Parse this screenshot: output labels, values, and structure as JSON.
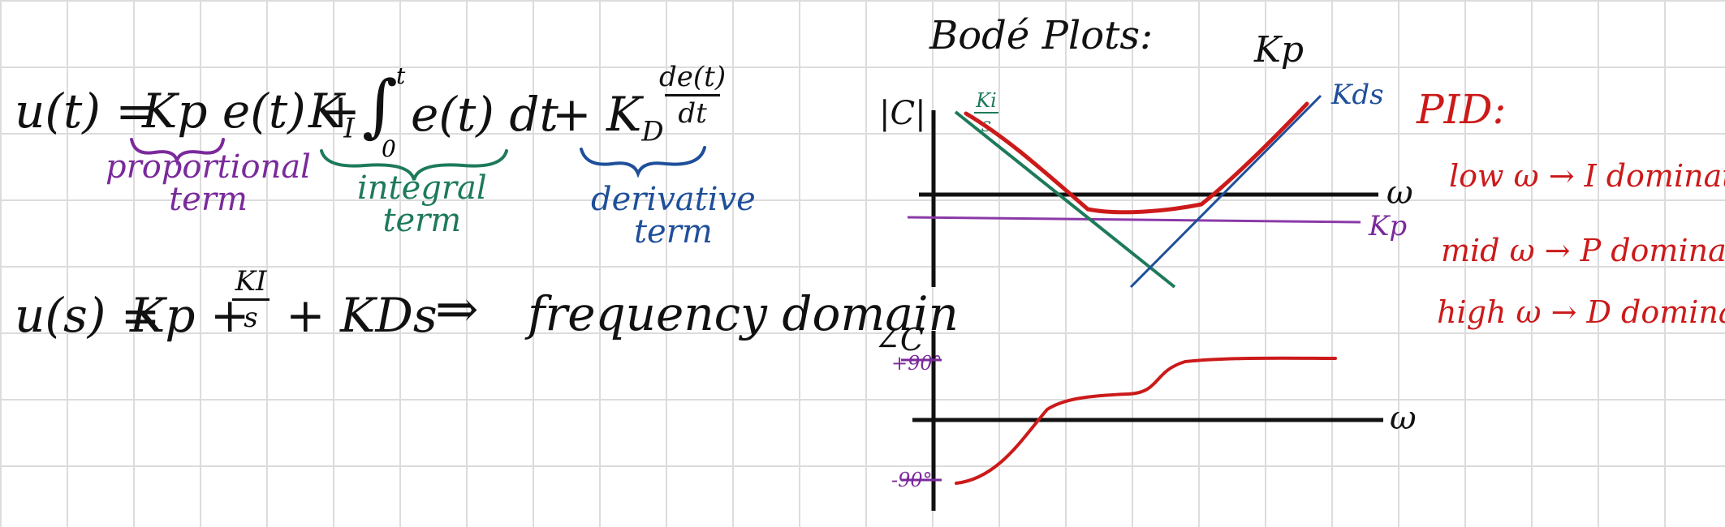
{
  "colors": {
    "ink": "#111111",
    "proportional": "#7b2a9b",
    "integral": "#1d7a5a",
    "derivative": "#1f4f9a",
    "pid": "#cc1a1a",
    "grid": "#dcdcdc"
  },
  "time_domain": {
    "lhs": "u(t) =",
    "kp_term": "Kp e(t)",
    "plus1": "+",
    "ki": "K",
    "ki_sub": "I",
    "integral_sign": "∫",
    "integral_upper": "t",
    "integral_lower": "0",
    "integrand": "e(t) dt",
    "plus2": "+",
    "kd": "K",
    "kd_sub": "D",
    "deriv_num": "de(t)",
    "deriv_den": "dt"
  },
  "term_labels": {
    "proportional": [
      "proportional",
      "term"
    ],
    "integral": [
      "integral",
      "term"
    ],
    "derivative": [
      "derivative",
      "term"
    ]
  },
  "freq_domain": {
    "lhs": "u(s) =",
    "kp": "Kp",
    "plus1": "+",
    "ki_num": "KI",
    "ki_den": "s",
    "plus2": "+",
    "kd_s": "KDs",
    "arrow": "⇒",
    "note": "frequency domain"
  },
  "bode": {
    "title": "Bodé Plots:",
    "mag_label": "|C|",
    "mag_axis": "ω",
    "phase_label": "∠C",
    "phase_axis": "ω",
    "phase_top": "+90°",
    "phase_bottom": "-90°",
    "line_kp_top": "Kp",
    "line_kds": "Kds",
    "line_kp_right": "Kp",
    "line_ki_num": "Ki",
    "line_ki_den": "s"
  },
  "pid": {
    "title": "PID:",
    "notes": [
      "low ω → I dominates",
      "mid ω → P dominates",
      "high ω → D dominates"
    ]
  }
}
